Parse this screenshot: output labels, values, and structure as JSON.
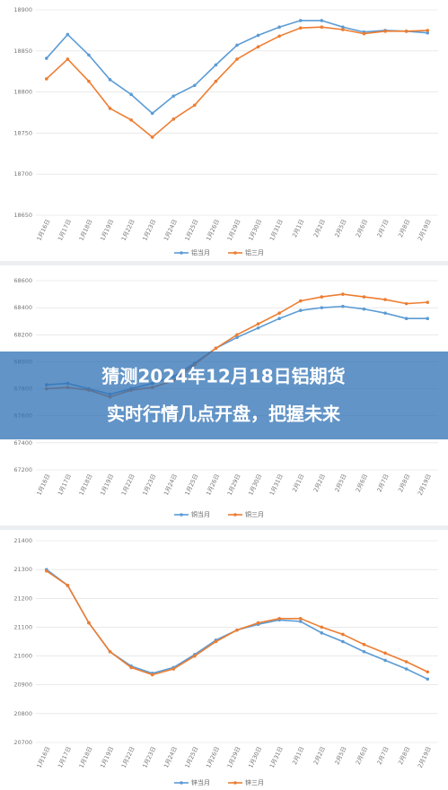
{
  "chart_data": [
    {
      "type": "line",
      "categories": [
        "1月16日",
        "1月17日",
        "1月18日",
        "1月19日",
        "1月22日",
        "1月23日",
        "1月24日",
        "1月25日",
        "1月26日",
        "1月29日",
        "1月30日",
        "1月31日",
        "2月1日",
        "2月2日",
        "2月5日",
        "2月6日",
        "2月7日",
        "2月8日",
        "2月19日"
      ],
      "series": [
        {
          "name": "铝当月",
          "color": "#5b9bd5",
          "values": [
            18841,
            18870,
            18845,
            18815,
            18797,
            18774,
            18795,
            18808,
            18833,
            18857,
            18869,
            18879,
            18887,
            18887,
            18879,
            18873,
            18875,
            18874,
            18872
          ]
        },
        {
          "name": "铝三月",
          "color": "#ed7d31",
          "values": [
            18816,
            18840,
            18813,
            18780,
            18766,
            18745,
            18767,
            18784,
            18813,
            18840,
            18855,
            18868,
            18878,
            18879,
            18876,
            18871,
            18874,
            18874,
            18875
          ]
        }
      ],
      "ylim": [
        18650,
        18900
      ],
      "yticks": [
        18650,
        18700,
        18750,
        18800,
        18850,
        18900
      ],
      "grid": true,
      "legend": "bottom"
    },
    {
      "type": "line",
      "categories": [
        "1月16日",
        "1月17日",
        "1月18日",
        "1月19日",
        "1月22日",
        "1月23日",
        "1月24日",
        "1月25日",
        "1月26日",
        "1月29日",
        "1月30日",
        "1月31日",
        "2月1日",
        "2月2日",
        "2月5日",
        "2月6日",
        "2月7日",
        "2月8日",
        "2月19日"
      ],
      "series": [
        {
          "name": "铜当月",
          "color": "#5b9bd5",
          "values": [
            67830,
            67840,
            67800,
            67760,
            67800,
            67840,
            67890,
            67990,
            68100,
            68180,
            68250,
            68320,
            68380,
            68400,
            68410,
            68390,
            68360,
            68320,
            68320
          ]
        },
        {
          "name": "铜三月",
          "color": "#ed7d31",
          "values": [
            67800,
            67810,
            67790,
            67740,
            67790,
            67810,
            67860,
            67980,
            68100,
            68200,
            68280,
            68360,
            68450,
            68480,
            68500,
            68480,
            68460,
            68430,
            68440
          ]
        }
      ],
      "ylim": [
        67200,
        68600
      ],
      "yticks": [
        67200,
        67400,
        67600,
        67800,
        68000,
        68200,
        68400,
        68600
      ],
      "grid": true,
      "legend": "bottom"
    },
    {
      "type": "line",
      "categories": [
        "1月16日",
        "1月17日",
        "1月18日",
        "1月19日",
        "1月22日",
        "1月23日",
        "1月24日",
        "1月25日",
        "1月26日",
        "1月29日",
        "1月30日",
        "1月31日",
        "2月1日",
        "2月2日",
        "2月5日",
        "2月6日",
        "2月7日",
        "2月8日",
        "2月19日"
      ],
      "series": [
        {
          "name": "锌当月",
          "color": "#5b9bd5",
          "values": [
            21300,
            21245,
            21115,
            21015,
            20965,
            20940,
            20960,
            21005,
            21055,
            21090,
            21110,
            21125,
            21120,
            21080,
            21050,
            21015,
            20985,
            20955,
            20920
          ]
        },
        {
          "name": "锌三月",
          "color": "#ed7d31",
          "values": [
            21295,
            21245,
            21115,
            21015,
            20960,
            20935,
            20955,
            21000,
            21050,
            21090,
            21115,
            21130,
            21130,
            21100,
            21075,
            21040,
            21010,
            20980,
            20945
          ]
        }
      ],
      "ylim": [
        20700,
        21400
      ],
      "yticks": [
        20700,
        20800,
        20900,
        21000,
        21100,
        21200,
        21300,
        21400
      ],
      "grid": true,
      "legend": "bottom"
    }
  ],
  "banner": {
    "lines": [
      "猜测2024年12月18日铝期货",
      "实时行情几点开盘，把握未来"
    ]
  }
}
